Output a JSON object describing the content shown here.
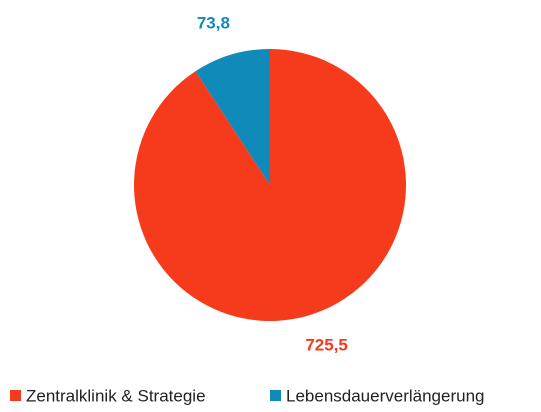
{
  "chart_data": {
    "type": "pie",
    "categories": [
      "Zentralklinik & Strategie",
      "Lebensdauerverlängerung"
    ],
    "values": [
      725.5,
      73.8
    ],
    "value_labels": [
      "725,5",
      "73,8"
    ],
    "colors": [
      "#f53b1c",
      "#108ab8"
    ],
    "legend": "bottom"
  }
}
